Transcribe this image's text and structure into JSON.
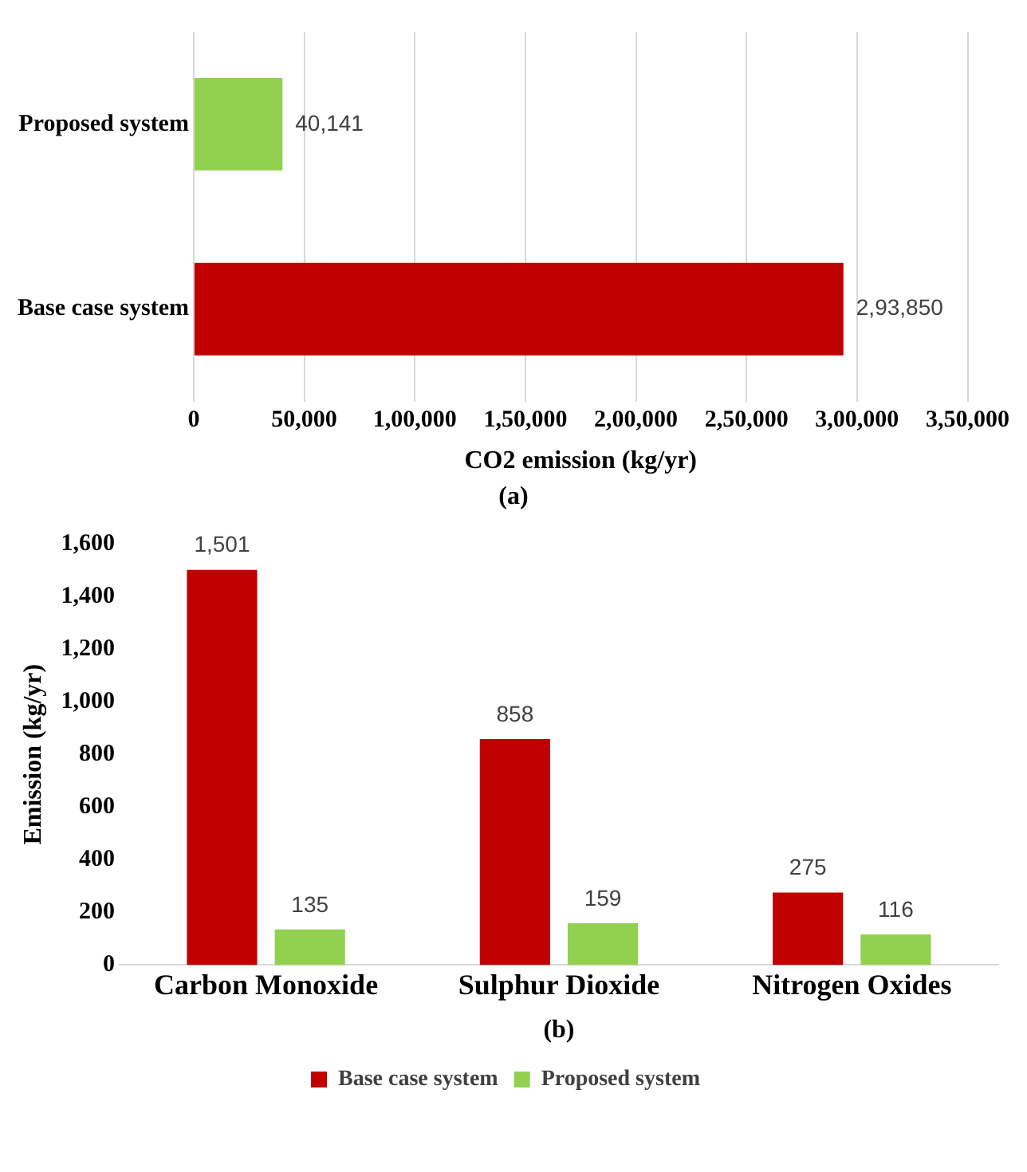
{
  "chart_data": [
    {
      "type": "bar",
      "orientation": "horizontal",
      "categories": [
        "Proposed system",
        "Base case system"
      ],
      "values": [
        40141,
        293850
      ],
      "colors": [
        "#92d050",
        "#c00000"
      ],
      "value_labels": [
        "40,141",
        "2,93,850"
      ],
      "xlim": [
        0,
        350000
      ],
      "xticks": [
        0,
        {
          "value": 50000,
          "label": "50,000"
        },
        {
          "value": 100000,
          "label": "1,00,000"
        },
        {
          "value": 150000,
          "label": "1,50,000"
        },
        {
          "value": 200000,
          "label": "2,00,000"
        },
        {
          "value": 250000,
          "label": "2,50,000"
        },
        {
          "value": 300000,
          "label": "3,00,000"
        },
        {
          "value": 350000,
          "label": "3,50,000"
        }
      ],
      "xlabel": "CO2 emission (kg/yr)",
      "annotations": [
        "(a)"
      ],
      "grid": "x",
      "legend": false
    },
    {
      "type": "bar",
      "categories": [
        "Carbon Monoxide",
        "Sulphur Dioxide",
        "Nitrogen Oxides"
      ],
      "series": [
        {
          "name": "Base case system",
          "color": "#c00000",
          "values": [
            1501,
            858,
            275
          ],
          "value_labels": [
            "1,501",
            "858",
            "275"
          ]
        },
        {
          "name": "Proposed system",
          "color": "#92d050",
          "values": [
            135,
            159,
            116
          ],
          "value_labels": [
            "135",
            "159",
            "116"
          ]
        }
      ],
      "ylim": [
        0,
        1600
      ],
      "yticks": [
        0,
        200,
        400,
        600,
        800,
        {
          "value": 1000,
          "label": "1,000"
        },
        {
          "value": 1200,
          "label": "1,200"
        },
        {
          "value": 1400,
          "label": "1,400"
        },
        {
          "value": 1600,
          "label": "1,600"
        }
      ],
      "ylabel": "Emission (kg/yr)",
      "annotations": [
        "(b)"
      ],
      "grid": false,
      "legend": "bottom"
    }
  ]
}
